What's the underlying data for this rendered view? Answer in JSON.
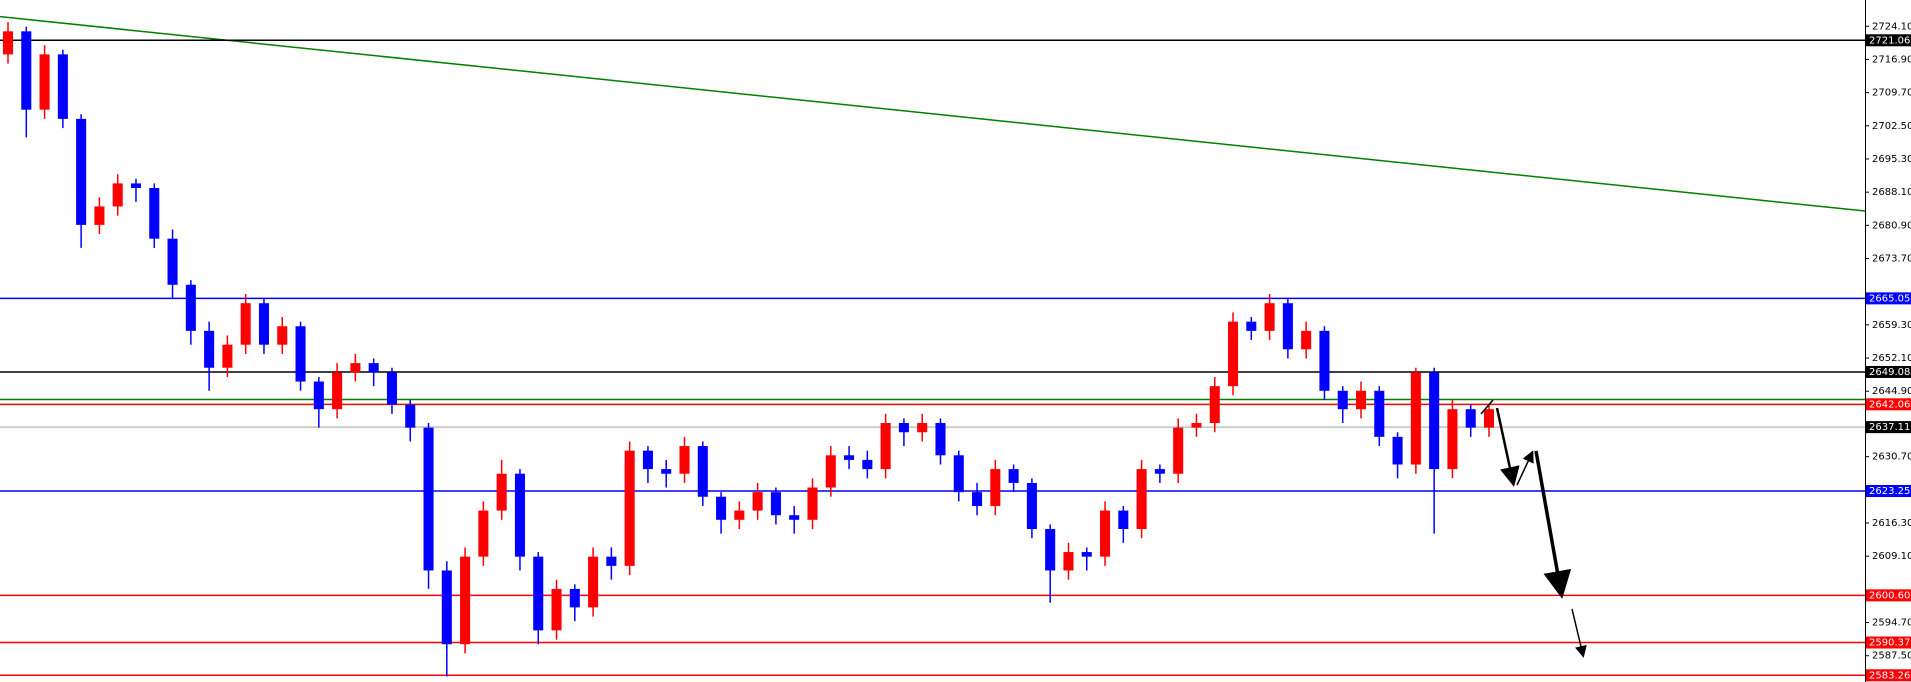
{
  "chart_data": {
    "type": "candlestick",
    "ylim": [
      2581.8,
      2729.8
    ],
    "yticks": [
      {
        "value": 2724.1,
        "label": "2724.10"
      },
      {
        "value": 2716.9,
        "label": "2716.90"
      },
      {
        "value": 2709.7,
        "label": "2709.70"
      },
      {
        "value": 2702.5,
        "label": "2702.50"
      },
      {
        "value": 2695.3,
        "label": "2695.30"
      },
      {
        "value": 2688.1,
        "label": "2688.10"
      },
      {
        "value": 2680.9,
        "label": "2680.90"
      },
      {
        "value": 2673.7,
        "label": "2673.70"
      },
      {
        "value": 2659.3,
        "label": "2659.30"
      },
      {
        "value": 2652.1,
        "label": "2652.10"
      },
      {
        "value": 2644.9,
        "label": "2644.90"
      },
      {
        "value": 2630.7,
        "label": "2630.70"
      },
      {
        "value": 2616.3,
        "label": "2616.30"
      },
      {
        "value": 2609.1,
        "label": "2609.10"
      },
      {
        "value": 2594.7,
        "label": "2594.70"
      },
      {
        "value": 2587.5,
        "label": "2587.50"
      }
    ],
    "up_color": "#ff0000",
    "down_color": "#0000ff",
    "ohlc": [
      [
        2718,
        2725,
        2716,
        2723
      ],
      [
        2723,
        2724,
        2700,
        2706
      ],
      [
        2706,
        2720,
        2704,
        2718
      ],
      [
        2718,
        2719,
        2702,
        2704
      ],
      [
        2704,
        2705,
        2676,
        2681
      ],
      [
        2681,
        2687,
        2679,
        2685
      ],
      [
        2685,
        2692,
        2683,
        2690
      ],
      [
        2690,
        2691,
        2686,
        2689
      ],
      [
        2689,
        2690,
        2676,
        2678
      ],
      [
        2678,
        2680,
        2665,
        2668
      ],
      [
        2668,
        2669,
        2655,
        2658
      ],
      [
        2658,
        2660,
        2645,
        2650
      ],
      [
        2650,
        2657,
        2648,
        2655
      ],
      [
        2655,
        2666,
        2653,
        2664
      ],
      [
        2664,
        2665,
        2653,
        2655
      ],
      [
        2655,
        2661,
        2653,
        2659
      ],
      [
        2659,
        2660,
        2645,
        2647
      ],
      [
        2647,
        2648,
        2637,
        2641
      ],
      [
        2641,
        2651,
        2639,
        2649
      ],
      [
        2649,
        2653,
        2647,
        2651
      ],
      [
        2651,
        2652,
        2646,
        2649
      ],
      [
        2649,
        2650,
        2640,
        2642
      ],
      [
        2642,
        2643,
        2634,
        2637
      ],
      [
        2637,
        2638,
        2602,
        2606
      ],
      [
        2606,
        2608,
        2583,
        2590
      ],
      [
        2590,
        2611,
        2588,
        2609
      ],
      [
        2609,
        2621,
        2607,
        2619
      ],
      [
        2619,
        2630,
        2617,
        2627
      ],
      [
        2627,
        2628,
        2606,
        2609
      ],
      [
        2609,
        2610,
        2590,
        2593
      ],
      [
        2593,
        2604,
        2591,
        2602
      ],
      [
        2602,
        2603,
        2595,
        2598
      ],
      [
        2598,
        2611,
        2596,
        2609
      ],
      [
        2609,
        2611,
        2604,
        2607
      ],
      [
        2607,
        2634,
        2605,
        2632
      ],
      [
        2632,
        2633,
        2625,
        2628
      ],
      [
        2628,
        2630,
        2624,
        2627
      ],
      [
        2627,
        2635,
        2625,
        2633
      ],
      [
        2633,
        2634,
        2620,
        2622
      ],
      [
        2622,
        2623,
        2614,
        2617
      ],
      [
        2617,
        2621,
        2615,
        2619
      ],
      [
        2619,
        2625,
        2617,
        2623
      ],
      [
        2623,
        2624,
        2616,
        2618
      ],
      [
        2618,
        2620,
        2614,
        2617
      ],
      [
        2617,
        2626,
        2615,
        2624
      ],
      [
        2624,
        2633,
        2622,
        2631
      ],
      [
        2631,
        2633,
        2628,
        2630
      ],
      [
        2630,
        2632,
        2626,
        2628
      ],
      [
        2628,
        2640,
        2626,
        2638
      ],
      [
        2638,
        2639,
        2633,
        2636
      ],
      [
        2636,
        2640,
        2634,
        2638
      ],
      [
        2638,
        2639,
        2629,
        2631
      ],
      [
        2631,
        2632,
        2621,
        2623
      ],
      [
        2623,
        2625,
        2618,
        2620
      ],
      [
        2620,
        2630,
        2618,
        2628
      ],
      [
        2628,
        2629,
        2623,
        2625
      ],
      [
        2625,
        2626,
        2613,
        2615
      ],
      [
        2615,
        2616,
        2599,
        2606
      ],
      [
        2606,
        2612,
        2604,
        2610
      ],
      [
        2610,
        2611,
        2606,
        2609
      ],
      [
        2609,
        2621,
        2607,
        2619
      ],
      [
        2619,
        2620,
        2612,
        2615
      ],
      [
        2615,
        2630,
        2613,
        2628
      ],
      [
        2628,
        2629,
        2625,
        2627
      ],
      [
        2627,
        2639,
        2625,
        2637
      ],
      [
        2637,
        2640,
        2635,
        2638
      ],
      [
        2638,
        2648,
        2636,
        2646
      ],
      [
        2646,
        2662,
        2644,
        2660
      ],
      [
        2660,
        2661,
        2656,
        2658
      ],
      [
        2658,
        2666,
        2656,
        2664
      ],
      [
        2664,
        2665,
        2652,
        2654
      ],
      [
        2654,
        2660,
        2652,
        2658
      ],
      [
        2658,
        2659,
        2643,
        2645
      ],
      [
        2645,
        2646,
        2638,
        2641
      ],
      [
        2641,
        2647,
        2639,
        2645
      ],
      [
        2645,
        2646,
        2633,
        2635
      ],
      [
        2635,
        2636,
        2626,
        2629
      ],
      [
        2629,
        2650,
        2627,
        2649
      ],
      [
        2649,
        2650,
        2614,
        2628
      ],
      [
        2628,
        2643,
        2626,
        2641
      ],
      [
        2641,
        2642,
        2635,
        2637
      ],
      [
        2637,
        2642,
        2635,
        2641
      ]
    ],
    "levels": [
      {
        "value": 2721.06,
        "color": "#000000"
      },
      {
        "value": 2665.05,
        "color": "#0000ff"
      },
      {
        "value": 2649.08,
        "color": "#000000"
      },
      {
        "value": 2642.06,
        "color": "#ff0000"
      },
      {
        "value": 2637.11,
        "color": "#c0c0c0"
      },
      {
        "value": 2623.25,
        "color": "#0000ff"
      },
      {
        "value": 2600.6,
        "label": "2600.60",
        "color": "#ff0000"
      },
      {
        "value": 2590.37,
        "color": "#ff0000"
      },
      {
        "value": 2583.26,
        "color": "#ff0000"
      }
    ],
    "lines": [
      {
        "value": 2643.1,
        "color": "#008000"
      }
    ],
    "trendline": {
      "color": "#008000",
      "from": 2726.2,
      "to": 2684.0
    }
  }
}
